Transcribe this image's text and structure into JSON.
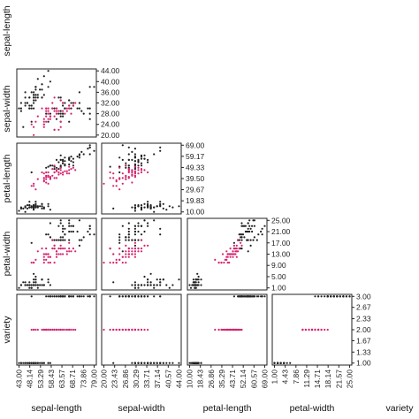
{
  "chart_data": {
    "type": "scatter",
    "variables": [
      "sepal-length",
      "sepal-width",
      "petal-length",
      "petal-width",
      "variety"
    ],
    "layout": "lower-triangle scatter matrix",
    "colors": {
      "group_a": "#222222",
      "group_b": "#d6246e"
    },
    "axes": {
      "sepal-length": {
        "ticks": [
          "43.00",
          "48.14",
          "53.29",
          "58.43",
          "63.57",
          "68.71",
          "73.86",
          "79.00"
        ],
        "range": [
          43,
          79
        ]
      },
      "sepal-width": {
        "ticks": [
          "20.00",
          "23.43",
          "26.86",
          "30.29",
          "33.71",
          "37.14",
          "40.57",
          "44.00"
        ],
        "range": [
          20,
          44
        ]
      },
      "petal-length": {
        "ticks": [
          "10.00",
          "18.43",
          "26.86",
          "35.29",
          "43.71",
          "52.14",
          "60.57",
          "69.00"
        ],
        "range": [
          10,
          69
        ]
      },
      "petal-width": {
        "ticks": [
          "1.00",
          "4.43",
          "7.86",
          "11.29",
          "14.71",
          "18.14",
          "21.57",
          "25.00"
        ],
        "range": [
          1,
          25
        ]
      },
      "variety": {
        "ticks": [
          "1.00",
          "1.33",
          "1.67",
          "2.00",
          "2.33",
          "2.67",
          "3.00"
        ],
        "range": [
          1,
          3
        ]
      }
    },
    "right_axis_ticks": {
      "sepal-width": [
        "20.00",
        "24.00",
        "28.00",
        "32.00",
        "36.00",
        "40.00",
        "44.00"
      ],
      "petal-length": [
        "10.00",
        "19.83",
        "29.67",
        "39.50",
        "49.33",
        "59.17",
        "69.00"
      ],
      "petal-width": [
        "1.00",
        "5.00",
        "9.00",
        "13.00",
        "17.00",
        "21.00",
        "25.00"
      ],
      "variety": [
        "1.00",
        "1.33",
        "1.67",
        "2.00",
        "2.33",
        "2.67",
        "3.00"
      ]
    },
    "series": [
      {
        "name": "",
        "color_key": "group_a",
        "points": [
          [
            51,
            35,
            14,
            2,
            1
          ],
          [
            49,
            30,
            14,
            2,
            1
          ],
          [
            47,
            32,
            13,
            2,
            1
          ],
          [
            46,
            31,
            15,
            2,
            1
          ],
          [
            50,
            36,
            14,
            2,
            1
          ],
          [
            54,
            39,
            17,
            4,
            1
          ],
          [
            46,
            34,
            14,
            3,
            1
          ],
          [
            50,
            34,
            15,
            2,
            1
          ],
          [
            44,
            29,
            14,
            2,
            1
          ],
          [
            49,
            31,
            15,
            1,
            1
          ],
          [
            54,
            37,
            15,
            2,
            1
          ],
          [
            48,
            34,
            16,
            2,
            1
          ],
          [
            48,
            30,
            14,
            1,
            1
          ],
          [
            43,
            30,
            11,
            1,
            1
          ],
          [
            58,
            40,
            12,
            2,
            1
          ],
          [
            57,
            44,
            15,
            4,
            1
          ],
          [
            54,
            39,
            13,
            4,
            1
          ],
          [
            51,
            35,
            14,
            3,
            1
          ],
          [
            57,
            38,
            17,
            3,
            1
          ],
          [
            51,
            38,
            15,
            3,
            1
          ],
          [
            54,
            34,
            17,
            2,
            1
          ],
          [
            51,
            37,
            15,
            4,
            1
          ],
          [
            46,
            36,
            10,
            2,
            1
          ],
          [
            51,
            33,
            17,
            5,
            1
          ],
          [
            48,
            34,
            19,
            2,
            1
          ],
          [
            50,
            30,
            16,
            2,
            1
          ],
          [
            50,
            34,
            16,
            4,
            1
          ],
          [
            52,
            35,
            15,
            2,
            1
          ],
          [
            52,
            34,
            14,
            2,
            1
          ],
          [
            47,
            32,
            16,
            2,
            1
          ],
          [
            48,
            31,
            16,
            2,
            1
          ],
          [
            54,
            34,
            15,
            4,
            1
          ],
          [
            52,
            41,
            15,
            1,
            1
          ],
          [
            55,
            42,
            14,
            2,
            1
          ],
          [
            49,
            31,
            15,
            2,
            1
          ],
          [
            50,
            32,
            12,
            2,
            1
          ],
          [
            55,
            35,
            13,
            2,
            1
          ],
          [
            49,
            36,
            14,
            1,
            1
          ],
          [
            44,
            30,
            13,
            2,
            1
          ],
          [
            51,
            34,
            15,
            2,
            1
          ],
          [
            50,
            35,
            13,
            3,
            1
          ],
          [
            45,
            23,
            13,
            3,
            1
          ],
          [
            44,
            32,
            13,
            2,
            1
          ],
          [
            50,
            35,
            16,
            6,
            1
          ],
          [
            51,
            38,
            19,
            4,
            1
          ],
          [
            48,
            30,
            14,
            3,
            1
          ],
          [
            51,
            38,
            16,
            2,
            1
          ],
          [
            46,
            32,
            14,
            2,
            1
          ],
          [
            53,
            37,
            15,
            2,
            1
          ],
          [
            50,
            33,
            14,
            2,
            1
          ],
          [
            63,
            33,
            60,
            25,
            3
          ],
          [
            58,
            27,
            51,
            19,
            3
          ],
          [
            71,
            30,
            59,
            21,
            3
          ],
          [
            63,
            29,
            56,
            18,
            3
          ],
          [
            65,
            30,
            58,
            22,
            3
          ],
          [
            76,
            30,
            66,
            21,
            3
          ],
          [
            49,
            25,
            45,
            17,
            3
          ],
          [
            73,
            29,
            63,
            18,
            3
          ],
          [
            67,
            25,
            58,
            18,
            3
          ],
          [
            72,
            36,
            61,
            25,
            3
          ],
          [
            65,
            32,
            51,
            20,
            3
          ],
          [
            64,
            27,
            53,
            19,
            3
          ],
          [
            68,
            30,
            55,
            21,
            3
          ],
          [
            57,
            25,
            50,
            20,
            3
          ],
          [
            58,
            28,
            51,
            24,
            3
          ],
          [
            64,
            32,
            53,
            23,
            3
          ],
          [
            65,
            30,
            55,
            18,
            3
          ],
          [
            77,
            38,
            67,
            22,
            3
          ],
          [
            77,
            26,
            69,
            23,
            3
          ],
          [
            60,
            22,
            50,
            15,
            3
          ],
          [
            69,
            32,
            57,
            23,
            3
          ],
          [
            56,
            28,
            49,
            20,
            3
          ],
          [
            77,
            28,
            67,
            20,
            3
          ],
          [
            63,
            27,
            49,
            18,
            3
          ],
          [
            67,
            33,
            57,
            21,
            3
          ],
          [
            72,
            32,
            60,
            18,
            3
          ],
          [
            62,
            28,
            48,
            18,
            3
          ],
          [
            61,
            30,
            49,
            18,
            3
          ],
          [
            64,
            28,
            56,
            21,
            3
          ],
          [
            72,
            30,
            58,
            16,
            3
          ],
          [
            74,
            28,
            61,
            19,
            3
          ],
          [
            79,
            38,
            64,
            20,
            3
          ],
          [
            64,
            28,
            56,
            22,
            3
          ],
          [
            63,
            28,
            51,
            15,
            3
          ],
          [
            61,
            26,
            56,
            14,
            3
          ],
          [
            77,
            30,
            61,
            23,
            3
          ],
          [
            63,
            34,
            56,
            24,
            3
          ],
          [
            64,
            31,
            55,
            18,
            3
          ],
          [
            60,
            30,
            48,
            18,
            3
          ],
          [
            69,
            31,
            54,
            21,
            3
          ],
          [
            67,
            31,
            56,
            24,
            3
          ],
          [
            69,
            31,
            51,
            23,
            3
          ],
          [
            58,
            27,
            51,
            19,
            3
          ],
          [
            68,
            32,
            59,
            23,
            3
          ],
          [
            67,
            33,
            57,
            25,
            3
          ],
          [
            67,
            30,
            52,
            23,
            3
          ],
          [
            63,
            25,
            50,
            19,
            3
          ],
          [
            65,
            30,
            52,
            20,
            3
          ],
          [
            62,
            34,
            54,
            23,
            3
          ],
          [
            59,
            30,
            51,
            18,
            3
          ]
        ]
      },
      {
        "name": "",
        "color_key": "group_b",
        "points": [
          [
            70,
            32,
            47,
            14,
            2
          ],
          [
            64,
            32,
            45,
            15,
            2
          ],
          [
            69,
            31,
            49,
            15,
            2
          ],
          [
            55,
            23,
            40,
            13,
            2
          ],
          [
            65,
            28,
            46,
            15,
            2
          ],
          [
            57,
            28,
            45,
            13,
            2
          ],
          [
            63,
            33,
            47,
            16,
            2
          ],
          [
            49,
            24,
            33,
            10,
            2
          ],
          [
            66,
            29,
            46,
            13,
            2
          ],
          [
            52,
            27,
            39,
            14,
            2
          ],
          [
            50,
            20,
            35,
            10,
            2
          ],
          [
            59,
            30,
            42,
            15,
            2
          ],
          [
            60,
            22,
            40,
            10,
            2
          ],
          [
            61,
            29,
            47,
            14,
            2
          ],
          [
            56,
            29,
            36,
            13,
            2
          ],
          [
            67,
            31,
            44,
            14,
            2
          ],
          [
            56,
            30,
            45,
            15,
            2
          ],
          [
            58,
            27,
            41,
            10,
            2
          ],
          [
            62,
            22,
            45,
            15,
            2
          ],
          [
            56,
            25,
            39,
            11,
            2
          ],
          [
            59,
            32,
            48,
            18,
            2
          ],
          [
            61,
            28,
            40,
            13,
            2
          ],
          [
            63,
            25,
            49,
            15,
            2
          ],
          [
            61,
            28,
            47,
            12,
            2
          ],
          [
            64,
            29,
            43,
            13,
            2
          ],
          [
            66,
            30,
            44,
            14,
            2
          ],
          [
            68,
            28,
            48,
            14,
            2
          ],
          [
            67,
            30,
            50,
            17,
            2
          ],
          [
            60,
            29,
            45,
            15,
            2
          ],
          [
            57,
            26,
            35,
            10,
            2
          ],
          [
            55,
            24,
            38,
            11,
            2
          ],
          [
            55,
            24,
            37,
            10,
            2
          ],
          [
            58,
            27,
            39,
            12,
            2
          ],
          [
            60,
            27,
            51,
            16,
            2
          ],
          [
            54,
            30,
            45,
            15,
            2
          ],
          [
            60,
            34,
            45,
            16,
            2
          ],
          [
            67,
            31,
            47,
            15,
            2
          ],
          [
            63,
            23,
            44,
            13,
            2
          ],
          [
            56,
            30,
            41,
            13,
            2
          ],
          [
            55,
            25,
            40,
            13,
            2
          ],
          [
            55,
            26,
            44,
            12,
            2
          ],
          [
            61,
            30,
            46,
            14,
            2
          ],
          [
            58,
            26,
            40,
            12,
            2
          ],
          [
            50,
            23,
            33,
            10,
            2
          ],
          [
            56,
            27,
            42,
            13,
            2
          ],
          [
            57,
            30,
            42,
            12,
            2
          ],
          [
            57,
            29,
            42,
            13,
            2
          ],
          [
            62,
            29,
            43,
            13,
            2
          ],
          [
            51,
            25,
            30,
            11,
            2
          ],
          [
            57,
            28,
            41,
            13,
            2
          ]
        ]
      }
    ],
    "grid": false,
    "legend": "none"
  }
}
